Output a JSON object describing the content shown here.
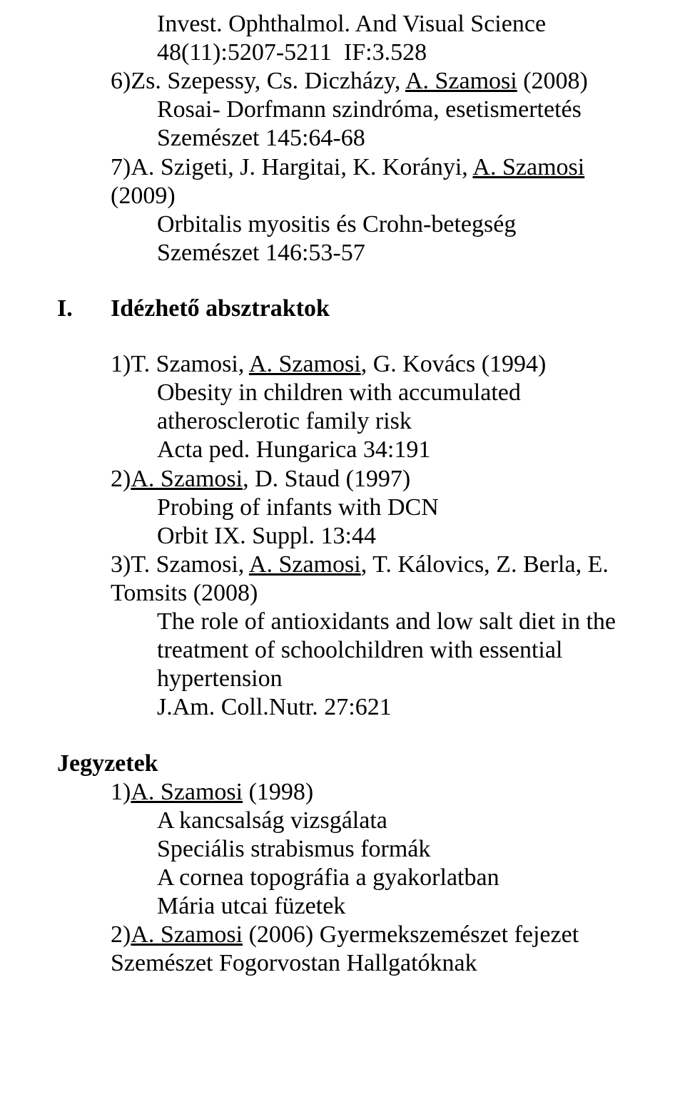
{
  "top": {
    "line1": "Invest. Ophthalmol. And Visual Science",
    "line2": "48(11):5207-5211  IF:3.528",
    "item6_prefix": "6)Zs. Szepessy, Cs. Diczházy, ",
    "item6_auth": "A. Szamosi",
    "item6_year": " (2008)",
    "item6_title": "Rosai- Dorfmann szindróma, esetismertetés",
    "item6_ref": "Szemészet 145:64-68",
    "item7_prefix": "7)A. Szigeti, J. Hargitai, K. Korányi, ",
    "item7_auth": "A. Szamosi",
    "item7_suffix": "(2009)",
    "item7_title": "Orbitalis myositis és Crohn-betegség",
    "item7_ref": "Szemészet 146:53-57"
  },
  "sectionI": {
    "marker": "I.",
    "heading": "Idézhető absztraktok",
    "i1_prefix": "1)T. Szamosi, ",
    "i1_auth": "A. Szamosi",
    "i1_rest": ", G. Kovács (1994)",
    "i1_t1": "Obesity in children with accumulated",
    "i1_t2": "atherosclerotic family risk",
    "i1_ref": "Acta ped. Hungarica 34:191",
    "i2_prefix": "2)",
    "i2_auth": "A. Szamosi",
    "i2_rest": ", D. Staud (1997)",
    "i2_title": "Probing of infants with DCN",
    "i2_ref": "Orbit IX. Suppl. 13:44",
    "i3_prefix": "3)T. Szamosi, ",
    "i3_auth": "A. Szamosi",
    "i3_rest1": ", T. Kálovics, Z. Berla, E.",
    "i3_rest2": "Tomsits (2008)",
    "i3_t1": "The role of antioxidants and low salt diet in the",
    "i3_t2": "treatment of schoolchildren with essential",
    "i3_t3": "hypertension",
    "i3_ref": "J.Am. Coll.Nutr. 27:621"
  },
  "notes": {
    "heading": "Jegyzetek",
    "n1_prefix": "1)",
    "n1_auth": "A. Szamosi",
    "n1_year": " (1998)",
    "n1_l1": "A kancsalság vizsgálata",
    "n1_l2": "Speciális strabismus formák",
    "n1_l3": "A cornea topográfia a gyakorlatban",
    "n1_l4": "Mária utcai füzetek",
    "n2_prefix": "2)",
    "n2_auth": "A. Szamosi",
    "n2_rest": " (2006) Gyermekszemészet fejezet",
    "n2_line2": "Szemészet Fogorvostan Hallgatóknak"
  }
}
